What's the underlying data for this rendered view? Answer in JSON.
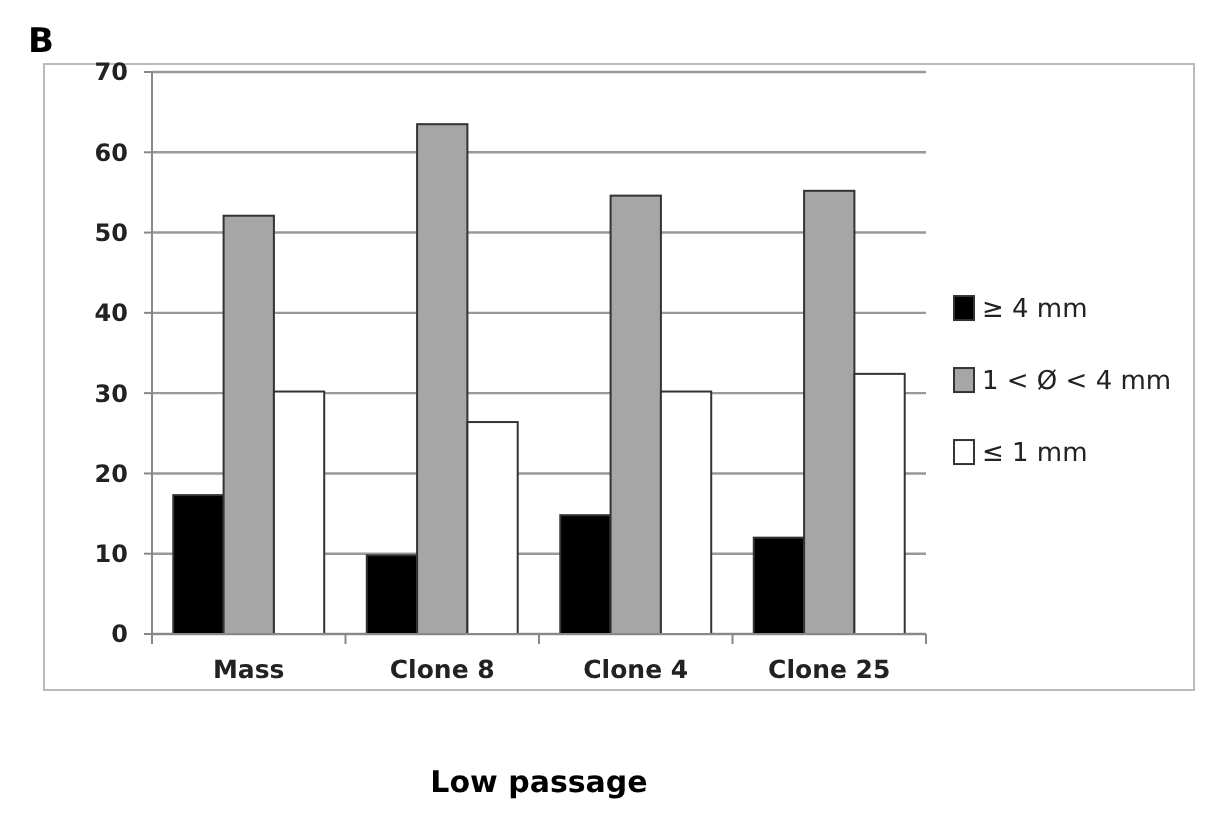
{
  "chart_data": {
    "type": "bar",
    "xlabel": "Low passage",
    "annotations": [
      "B"
    ],
    "categories": [
      "Mass",
      "Clone 8",
      "Clone 4",
      "Clone 25"
    ],
    "series": [
      {
        "name": "≥ 4 mm",
        "color": "#000000",
        "values": [
          17.3,
          9.8,
          14.8,
          12.0
        ]
      },
      {
        "name": "1 < Ø < 4 mm",
        "color": "#a6a6a6",
        "values": [
          52.1,
          63.5,
          54.6,
          55.2
        ]
      },
      {
        "name": "≤ 1 mm",
        "color": "#ffffff",
        "values": [
          30.2,
          26.4,
          30.2,
          32.4
        ]
      }
    ],
    "ylim": [
      0,
      70
    ],
    "yticks": [
      0,
      10,
      20,
      30,
      40,
      50,
      60,
      70
    ],
    "grid": "y",
    "legend": "right"
  }
}
